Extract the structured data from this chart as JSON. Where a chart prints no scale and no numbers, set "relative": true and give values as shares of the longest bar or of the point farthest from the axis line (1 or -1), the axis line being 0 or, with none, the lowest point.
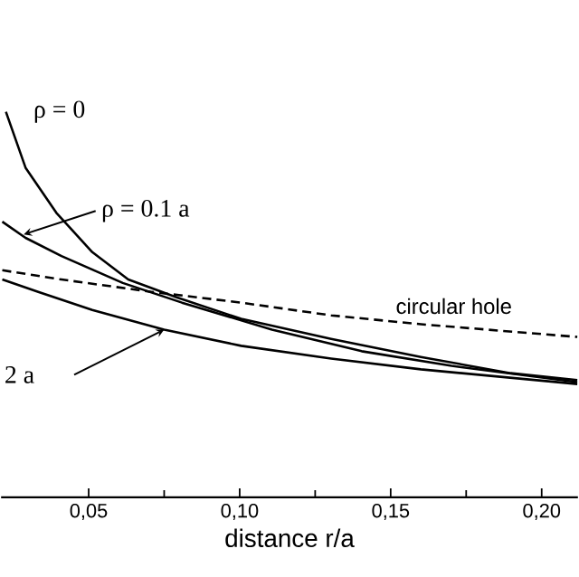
{
  "chart_data": {
    "type": "line",
    "relative": true,
    "xlabel": "distance  r/a",
    "xlim": [
      0.021,
      0.212
    ],
    "xticks": [
      {
        "value": 0.05,
        "label": "0,05"
      },
      {
        "value": 0.1,
        "label": "0,10"
      },
      {
        "value": 0.15,
        "label": "0,15"
      },
      {
        "value": 0.2,
        "label": "0,20"
      }
    ],
    "grid": false,
    "marker": "none",
    "series": [
      {
        "name": "ρ = 0",
        "color": "#000000",
        "line_style": "solid",
        "x": [
          0.0226,
          0.0291,
          0.0393,
          0.0512,
          0.0631,
          0.0791,
          0.1005,
          0.1303,
          0.16,
          0.1898,
          0.2118
        ],
        "values": [
          1.0,
          0.855,
          0.738,
          0.636,
          0.565,
          0.519,
          0.463,
          0.411,
          0.364,
          0.322,
          0.304
        ]
      },
      {
        "name": "ρ = 0.1  a",
        "color": "#000000",
        "line_style": "solid",
        "x": [
          0.0214,
          0.0291,
          0.041,
          0.0613,
          0.0809,
          0.1107,
          0.1404,
          0.1702,
          0.2118
        ],
        "values": [
          0.715,
          0.673,
          0.626,
          0.556,
          0.505,
          0.435,
          0.379,
          0.341,
          0.299
        ]
      },
      {
        "name": "2  a",
        "color": "#000000",
        "line_style": "solid",
        "x": [
          0.0214,
          0.0333,
          0.0512,
          0.075,
          0.1005,
          0.1303,
          0.16,
          0.2118
        ],
        "values": [
          0.565,
          0.533,
          0.486,
          0.435,
          0.393,
          0.36,
          0.332,
          0.294
        ]
      },
      {
        "name": "circular hole",
        "color": "#000000",
        "line_style": "dashed",
        "x": [
          0.0214,
          0.041,
          0.0708,
          0.1005,
          0.1303,
          0.16,
          0.2118
        ],
        "values": [
          0.589,
          0.565,
          0.533,
          0.505,
          0.472,
          0.449,
          0.416
        ]
      }
    ]
  }
}
